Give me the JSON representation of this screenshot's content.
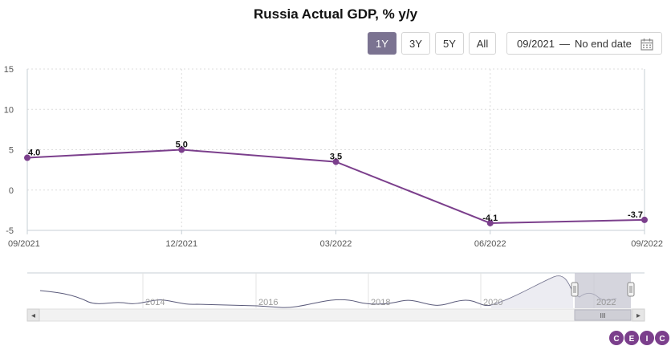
{
  "title": "Russia Actual GDP, % y/y",
  "range_buttons": [
    {
      "label": "1Y",
      "active": true
    },
    {
      "label": "3Y",
      "active": false
    },
    {
      "label": "5Y",
      "active": false
    },
    {
      "label": "All",
      "active": false
    }
  ],
  "date_range": {
    "start": "09/2021",
    "separator": "—",
    "end": "No end date",
    "icon": "calendar-icon"
  },
  "colors": {
    "series": "#7b3f8c",
    "accent": "#7b7391",
    "navigator_line": "#5a5a7a"
  },
  "chart_data": {
    "type": "line",
    "title": "Russia Actual GDP, % y/y",
    "x": [
      "09/2021",
      "12/2021",
      "03/2022",
      "06/2022",
      "09/2022"
    ],
    "series": [
      {
        "values": [
          4.0,
          5.0,
          3.5,
          -4.1,
          -3.7
        ],
        "labels": [
          "4.0",
          "5.0",
          "3.5",
          "-4.1",
          "-3.7"
        ]
      }
    ],
    "y_ticks": [
      "15",
      "10",
      "5",
      "0",
      "-5"
    ],
    "ylim": [
      -5,
      15
    ],
    "grid": true
  },
  "navigator": {
    "year_labels": [
      "2014",
      "2016",
      "2018",
      "2020",
      "2022"
    ],
    "scroll_left": "◂",
    "scroll_right": "▸",
    "scroll_grip": "III"
  },
  "brand": [
    "C",
    "E",
    "I",
    "C"
  ]
}
